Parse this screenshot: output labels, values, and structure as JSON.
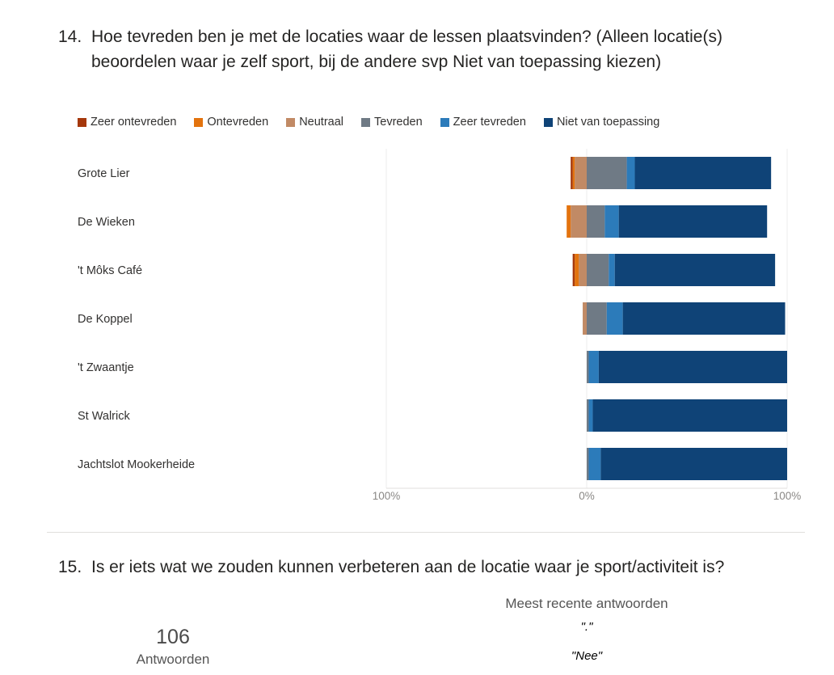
{
  "q14": {
    "number": "14.",
    "title": "Hoe tevreden ben je met de locaties waar de lessen plaatsvinden? (Alleen locatie(s)\nbeoordelen waar je zelf sport, bij de andere svp Niet van toepassing kiezen)"
  },
  "q15": {
    "number": "15.",
    "title": "Is er iets wat we zouden kunnen verbeteren aan de locatie waar je sport/activiteit is?",
    "responses_count": "106",
    "responses_label": "Antwoorden",
    "recent_header": "Meest recente antwoorden",
    "recent": [
      "\".\"",
      "\"Nee\""
    ]
  },
  "chart_data": {
    "type": "bar",
    "orientation": "horizontal-diverging-stacked",
    "categories": [
      "Grote Lier",
      "De Wieken",
      "'t Môks Café",
      "De Koppel",
      "'t Zwaantje",
      "St Walrick",
      "Jachtslot Mookerheide"
    ],
    "x_tick_labels": [
      "100%",
      "0%",
      "100%"
    ],
    "xlim": [
      -100,
      100
    ],
    "legend_position": "top",
    "series": [
      {
        "name": "Zeer ontevreden",
        "color": "#a5380c",
        "values": [
          1,
          0,
          1,
          0,
          0,
          0,
          0
        ]
      },
      {
        "name": "Ontevreden",
        "color": "#e3730e",
        "values": [
          1,
          2,
          2,
          0,
          0,
          0,
          0
        ]
      },
      {
        "name": "Neutraal",
        "color": "#c18a65",
        "values": [
          6,
          8,
          4,
          2,
          0,
          0,
          0
        ]
      },
      {
        "name": "Tevreden",
        "color": "#6f7a85",
        "values": [
          20,
          9,
          11,
          10,
          1,
          1,
          1
        ]
      },
      {
        "name": "Zeer tevreden",
        "color": "#2c7bba",
        "values": [
          4,
          7,
          3,
          8,
          5,
          2,
          6
        ]
      },
      {
        "name": "Niet van toepassing",
        "color": "#0f4377",
        "values": [
          68,
          74,
          80,
          81,
          94,
          97,
          93
        ]
      }
    ]
  }
}
